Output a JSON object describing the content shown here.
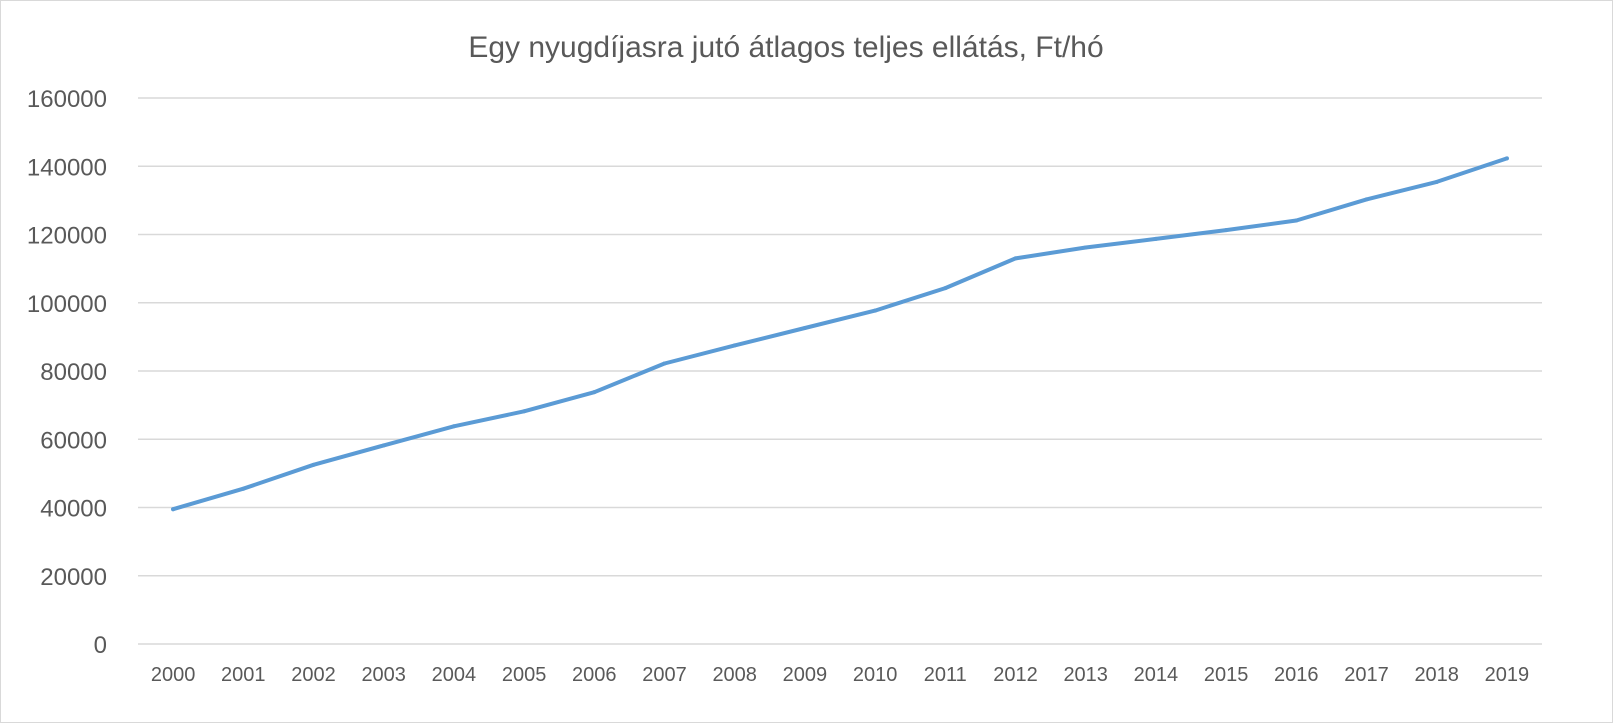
{
  "chart_data": {
    "type": "line",
    "title": "Egy nyugdíjasra jutó átlagos teljes ellátás, Ft/hó",
    "xlabel": "",
    "ylabel": "",
    "categories": [
      "2000",
      "2001",
      "2002",
      "2003",
      "2004",
      "2005",
      "2006",
      "2007",
      "2008",
      "2009",
      "2010",
      "2011",
      "2012",
      "2013",
      "2014",
      "2015",
      "2016",
      "2017",
      "2018",
      "2019"
    ],
    "series": [
      {
        "values": [
          39500,
          45500,
          52500,
          58200,
          63800,
          68200,
          73800,
          82200,
          87500,
          92600,
          97700,
          104300,
          113000,
          116200,
          118700,
          121300,
          124100,
          130300,
          135400,
          142300
        ],
        "color": "#5b9bd5"
      }
    ],
    "ylim": [
      0,
      160000
    ],
    "yticks": [
      "0",
      "20000",
      "40000",
      "60000",
      "80000",
      "100000",
      "120000",
      "140000",
      "160000"
    ],
    "grid": true,
    "legend": "none"
  }
}
